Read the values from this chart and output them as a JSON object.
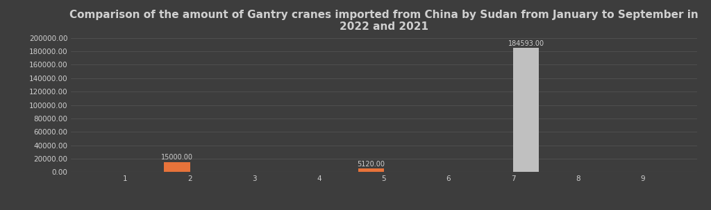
{
  "title": "Comparison of the amount of Gantry cranes imported from China by Sudan from January to September in\n2022 and 2021",
  "months": [
    1,
    2,
    3,
    4,
    5,
    6,
    7,
    8,
    9
  ],
  "data_2021": [
    0,
    15000,
    0,
    0,
    5120,
    0,
    0,
    0,
    0
  ],
  "data_2022": [
    0,
    0,
    0,
    0,
    0,
    0,
    184593,
    0,
    0
  ],
  "color_2021": "#E8733A",
  "color_2022": "#C0C0C0",
  "background_color": "#3d3d3d",
  "text_color": "#d0d0d0",
  "grid_color": "#565656",
  "ylim": [
    0,
    200000
  ],
  "yticks": [
    0,
    20000,
    40000,
    60000,
    80000,
    100000,
    120000,
    140000,
    160000,
    180000,
    200000
  ],
  "bar_width": 0.4,
  "title_fontsize": 11,
  "tick_fontsize": 7.5,
  "label_fontsize": 7,
  "annot_fontsize": 7
}
